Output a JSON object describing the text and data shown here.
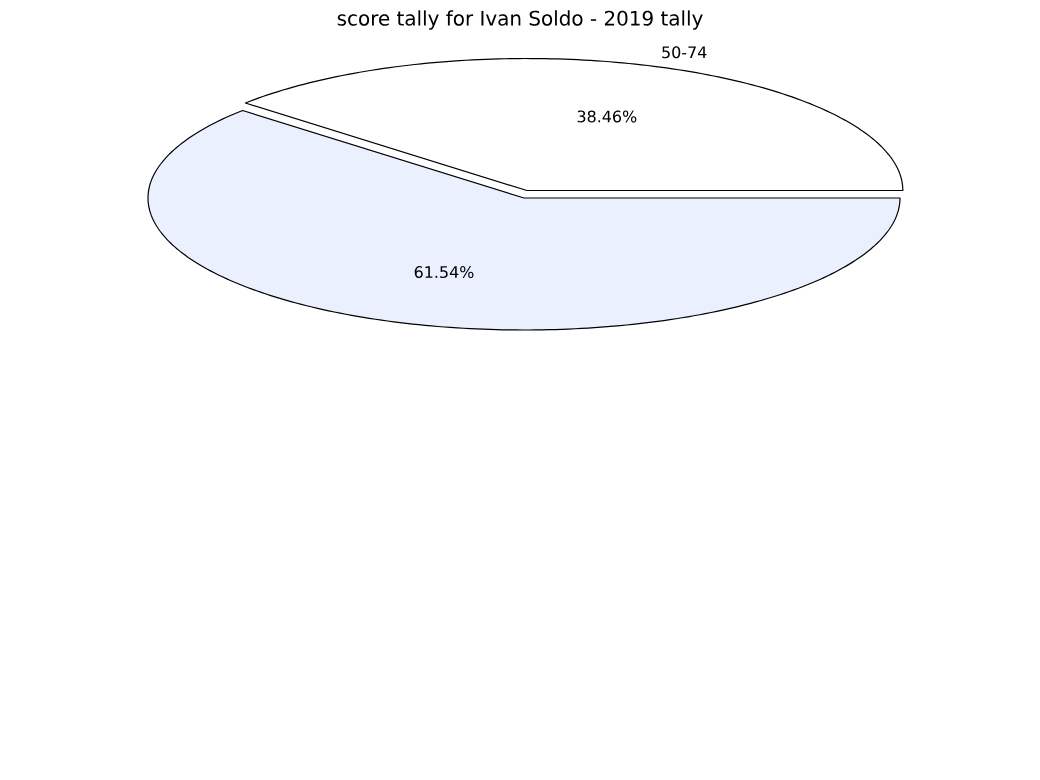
{
  "chart_data": {
    "type": "pie",
    "title": "score tally for Ivan Soldo - 2019 tally",
    "categories": [
      "50-74",
      null
    ],
    "values": [
      38.46,
      61.54
    ],
    "value_labels": [
      "38.46%",
      "61.54%"
    ],
    "colors": [
      "#ffffff",
      "#eaf0fe"
    ]
  }
}
